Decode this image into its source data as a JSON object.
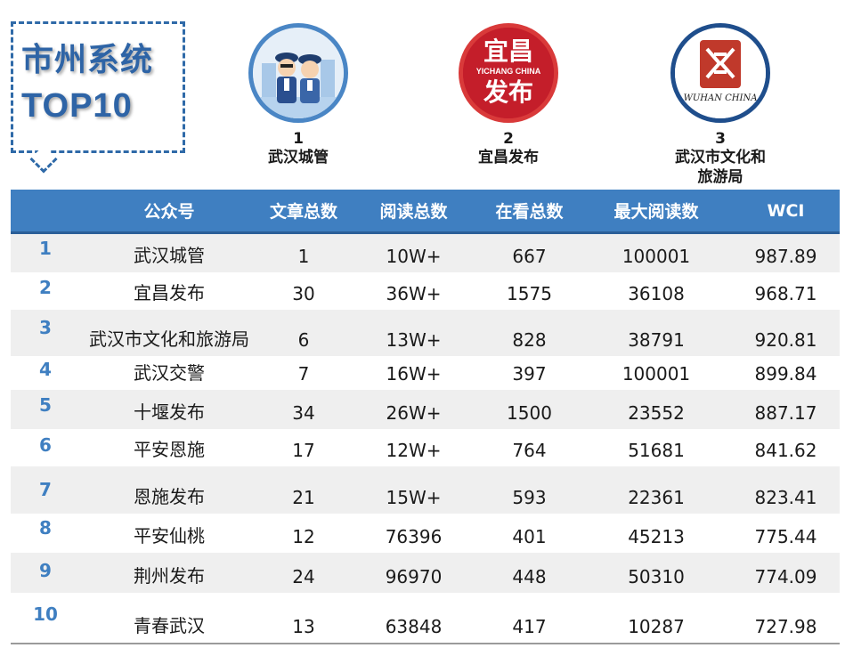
{
  "title": {
    "line1": "市州系统",
    "line2": "TOP10"
  },
  "top3": [
    {
      "rank": "1",
      "name": "武汉城管",
      "logo": "police-cartoon-logo"
    },
    {
      "rank": "2",
      "name": "宜昌发布",
      "logo": "yichang-logo",
      "logo_text_top": "宜昌",
      "logo_text_mid": "YICHANG CHINA",
      "logo_text_bottom": "发布"
    },
    {
      "rank": "3",
      "name_line1": "武汉市文化和",
      "name_line2": "旅游局",
      "logo": "wuhan-seal-logo",
      "logo_text": "WUHAN CHINA"
    }
  ],
  "table": {
    "headers": [
      "公众号",
      "文章总数",
      "阅读总数",
      "在看总数",
      "最大阅读数",
      "WCI"
    ],
    "rows": [
      {
        "rank": "1",
        "name": "武汉城管",
        "articles": "1",
        "reads": "10W+",
        "looks": "667",
        "max": "100001",
        "wci": "987.89"
      },
      {
        "rank": "2",
        "name": "宜昌发布",
        "articles": "30",
        "reads": "36W+",
        "looks": "1575",
        "max": "36108",
        "wci": "968.71"
      },
      {
        "rank": "3",
        "name": "武汉市文化和旅游局",
        "articles": "6",
        "reads": "13W+",
        "looks": "828",
        "max": "38791",
        "wci": "920.81"
      },
      {
        "rank": "4",
        "name": "武汉交警",
        "articles": "7",
        "reads": "16W+",
        "looks": "397",
        "max": "100001",
        "wci": "899.84"
      },
      {
        "rank": "5",
        "name": "十堰发布",
        "articles": "34",
        "reads": "26W+",
        "looks": "1500",
        "max": "23552",
        "wci": "887.17"
      },
      {
        "rank": "6",
        "name": "平安恩施",
        "articles": "17",
        "reads": "12W+",
        "looks": "764",
        "max": "51681",
        "wci": "841.62"
      },
      {
        "rank": "7",
        "name": "恩施发布",
        "articles": "21",
        "reads": "15W+",
        "looks": "593",
        "max": "22361",
        "wci": "823.41"
      },
      {
        "rank": "8",
        "name": "平安仙桃",
        "articles": "12",
        "reads": "76396",
        "looks": "401",
        "max": "45213",
        "wci": "775.44"
      },
      {
        "rank": "9",
        "name": "荆州发布",
        "articles": "24",
        "reads": "96970",
        "looks": "448",
        "max": "50310",
        "wci": "774.09"
      },
      {
        "rank": "10",
        "name": "青春武汉",
        "articles": "13",
        "reads": "63848",
        "looks": "417",
        "max": "10287",
        "wci": "727.98"
      }
    ]
  },
  "colors": {
    "header_bg": "#3f7fc1",
    "rank_color": "#3f7fc1",
    "title_color": "#2e64a6",
    "alt_row": "#efefef"
  }
}
